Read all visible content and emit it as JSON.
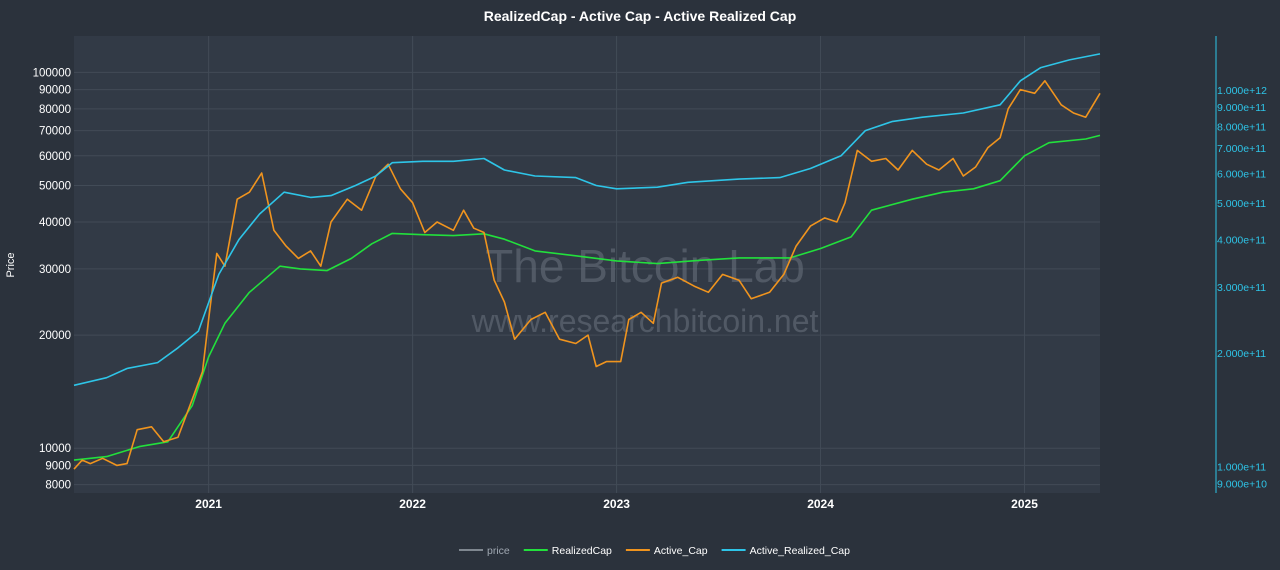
{
  "chart_data": {
    "type": "line",
    "title": "RealizedCap - Active Cap - Active Realized Cap",
    "ylabel": "Price",
    "y_scale": "log",
    "ylim": [
      7600,
      125000
    ],
    "yticks": [
      {
        "value": 100000,
        "label": "100000"
      },
      {
        "value": 90000,
        "label": "90000"
      },
      {
        "value": 80000,
        "label": "80000"
      },
      {
        "value": 70000,
        "label": "70000"
      },
      {
        "value": 60000,
        "label": "60000"
      },
      {
        "value": 50000,
        "label": "50000"
      },
      {
        "value": 40000,
        "label": "40000"
      },
      {
        "value": 30000,
        "label": "30000"
      },
      {
        "value": 20000,
        "label": "20000"
      },
      {
        "value": 10000,
        "label": "10000"
      },
      {
        "value": 9000,
        "label": "9000"
      },
      {
        "value": 8000,
        "label": "8000"
      }
    ],
    "y2_scale": "log",
    "y2lim": [
      85000000000,
      1390000000000
    ],
    "y2ticks": [
      {
        "value": 1000000000000,
        "label": "1.000e+12"
      },
      {
        "value": 900000000000,
        "label": "9.000e+11"
      },
      {
        "value": 800000000000,
        "label": "8.000e+11"
      },
      {
        "value": 700000000000,
        "label": "7.000e+11"
      },
      {
        "value": 600000000000,
        "label": "6.000e+11"
      },
      {
        "value": 500000000000,
        "label": "5.000e+11"
      },
      {
        "value": 400000000000,
        "label": "4.000e+11"
      },
      {
        "value": 300000000000,
        "label": "3.000e+11"
      },
      {
        "value": 200000000000,
        "label": "2.000e+11"
      },
      {
        "value": 100000000000,
        "label": "1.000e+11"
      },
      {
        "value": 90000000000,
        "label": "9.000e+10"
      }
    ],
    "xlim": [
      2020.34,
      2025.37
    ],
    "xticks": [
      {
        "value": 2021,
        "label": "2021"
      },
      {
        "value": 2022,
        "label": "2022"
      },
      {
        "value": 2023,
        "label": "2023"
      },
      {
        "value": 2024,
        "label": "2024"
      },
      {
        "value": 2025,
        "label": "2025"
      }
    ],
    "grid": true,
    "legend_position": "bottom-center",
    "watermark": [
      "The Bitcoin Lab",
      "www.researchbitcoin.net"
    ],
    "series": [
      {
        "name": "price",
        "color": "#7f8790",
        "points": []
      },
      {
        "name": "RealizedCap",
        "color": "#22e03c",
        "points": [
          [
            2020.34,
            9300
          ],
          [
            2020.5,
            9500
          ],
          [
            2020.66,
            10100
          ],
          [
            2020.8,
            10400
          ],
          [
            2020.92,
            13000
          ],
          [
            2021.0,
            17500
          ],
          [
            2021.08,
            21500
          ],
          [
            2021.2,
            26000
          ],
          [
            2021.35,
            30500
          ],
          [
            2021.45,
            30000
          ],
          [
            2021.58,
            29700
          ],
          [
            2021.7,
            32000
          ],
          [
            2021.8,
            35000
          ],
          [
            2021.9,
            37300
          ],
          [
            2022.05,
            37000
          ],
          [
            2022.2,
            36800
          ],
          [
            2022.35,
            37200
          ],
          [
            2022.45,
            36000
          ],
          [
            2022.6,
            33500
          ],
          [
            2022.8,
            32500
          ],
          [
            2023.0,
            31500
          ],
          [
            2023.2,
            31000
          ],
          [
            2023.4,
            31600
          ],
          [
            2023.6,
            32100
          ],
          [
            2023.85,
            32100
          ],
          [
            2024.0,
            34000
          ],
          [
            2024.15,
            36500
          ],
          [
            2024.25,
            43000
          ],
          [
            2024.45,
            46000
          ],
          [
            2024.6,
            48000
          ],
          [
            2024.75,
            49000
          ],
          [
            2024.88,
            51500
          ],
          [
            2025.0,
            60000
          ],
          [
            2025.12,
            65000
          ],
          [
            2025.3,
            66500
          ],
          [
            2025.37,
            68000
          ]
        ]
      },
      {
        "name": "Active_Cap",
        "color": "#f0941e",
        "points": [
          [
            2020.34,
            8800
          ],
          [
            2020.38,
            9300
          ],
          [
            2020.42,
            9100
          ],
          [
            2020.48,
            9400
          ],
          [
            2020.55,
            9000
          ],
          [
            2020.6,
            9100
          ],
          [
            2020.65,
            11200
          ],
          [
            2020.72,
            11400
          ],
          [
            2020.78,
            10400
          ],
          [
            2020.85,
            10700
          ],
          [
            2020.92,
            13500
          ],
          [
            2020.97,
            16000
          ],
          [
            2021.0,
            22000
          ],
          [
            2021.04,
            33000
          ],
          [
            2021.08,
            30500
          ],
          [
            2021.14,
            46000
          ],
          [
            2021.2,
            48000
          ],
          [
            2021.26,
            54000
          ],
          [
            2021.32,
            38000
          ],
          [
            2021.38,
            34500
          ],
          [
            2021.44,
            32000
          ],
          [
            2021.5,
            33500
          ],
          [
            2021.55,
            30500
          ],
          [
            2021.6,
            40000
          ],
          [
            2021.68,
            46000
          ],
          [
            2021.75,
            43000
          ],
          [
            2021.82,
            53000
          ],
          [
            2021.88,
            57000
          ],
          [
            2021.94,
            49000
          ],
          [
            2022.0,
            45000
          ],
          [
            2022.06,
            37500
          ],
          [
            2022.12,
            40000
          ],
          [
            2022.2,
            38000
          ],
          [
            2022.25,
            43000
          ],
          [
            2022.3,
            38500
          ],
          [
            2022.35,
            37500
          ],
          [
            2022.4,
            28000
          ],
          [
            2022.45,
            24500
          ],
          [
            2022.5,
            19500
          ],
          [
            2022.58,
            22000
          ],
          [
            2022.65,
            23000
          ],
          [
            2022.72,
            19500
          ],
          [
            2022.8,
            19000
          ],
          [
            2022.86,
            20000
          ],
          [
            2022.9,
            16500
          ],
          [
            2022.95,
            17000
          ],
          [
            2023.02,
            17000
          ],
          [
            2023.06,
            22000
          ],
          [
            2023.12,
            23000
          ],
          [
            2023.18,
            21500
          ],
          [
            2023.22,
            27500
          ],
          [
            2023.3,
            28500
          ],
          [
            2023.38,
            27000
          ],
          [
            2023.45,
            26000
          ],
          [
            2023.52,
            29000
          ],
          [
            2023.6,
            28000
          ],
          [
            2023.66,
            25000
          ],
          [
            2023.75,
            26000
          ],
          [
            2023.82,
            29000
          ],
          [
            2023.88,
            34500
          ],
          [
            2023.95,
            39000
          ],
          [
            2024.02,
            41000
          ],
          [
            2024.08,
            40000
          ],
          [
            2024.12,
            45000
          ],
          [
            2024.18,
            62000
          ],
          [
            2024.25,
            58000
          ],
          [
            2024.32,
            59000
          ],
          [
            2024.38,
            55000
          ],
          [
            2024.45,
            62000
          ],
          [
            2024.52,
            57000
          ],
          [
            2024.58,
            55000
          ],
          [
            2024.65,
            59000
          ],
          [
            2024.7,
            53000
          ],
          [
            2024.76,
            56000
          ],
          [
            2024.82,
            63000
          ],
          [
            2024.88,
            67000
          ],
          [
            2024.92,
            80000
          ],
          [
            2024.98,
            90000
          ],
          [
            2025.05,
            88000
          ],
          [
            2025.1,
            95000
          ],
          [
            2025.18,
            82000
          ],
          [
            2025.24,
            78000
          ],
          [
            2025.3,
            76000
          ],
          [
            2025.37,
            88000
          ]
        ]
      },
      {
        "name": "Active_Realized_Cap",
        "color": "#2ec5e8",
        "points": [
          [
            2020.34,
            14700
          ],
          [
            2020.5,
            15400
          ],
          [
            2020.6,
            16300
          ],
          [
            2020.75,
            16900
          ],
          [
            2020.85,
            18500
          ],
          [
            2020.95,
            20500
          ],
          [
            2021.05,
            29000
          ],
          [
            2021.15,
            36000
          ],
          [
            2021.25,
            42000
          ],
          [
            2021.37,
            48000
          ],
          [
            2021.5,
            46500
          ],
          [
            2021.6,
            47000
          ],
          [
            2021.72,
            50000
          ],
          [
            2021.82,
            53000
          ],
          [
            2021.9,
            57500
          ],
          [
            2022.05,
            58000
          ],
          [
            2022.2,
            58000
          ],
          [
            2022.35,
            59000
          ],
          [
            2022.45,
            55000
          ],
          [
            2022.6,
            53000
          ],
          [
            2022.8,
            52500
          ],
          [
            2022.9,
            50000
          ],
          [
            2023.0,
            49000
          ],
          [
            2023.2,
            49500
          ],
          [
            2023.35,
            51000
          ],
          [
            2023.6,
            52000
          ],
          [
            2023.8,
            52500
          ],
          [
            2023.95,
            55500
          ],
          [
            2024.1,
            60000
          ],
          [
            2024.22,
            70000
          ],
          [
            2024.35,
            74000
          ],
          [
            2024.5,
            76000
          ],
          [
            2024.7,
            78000
          ],
          [
            2024.88,
            82000
          ],
          [
            2024.98,
            95000
          ],
          [
            2025.08,
            103000
          ],
          [
            2025.22,
            108000
          ],
          [
            2025.37,
            112000
          ]
        ]
      }
    ]
  }
}
